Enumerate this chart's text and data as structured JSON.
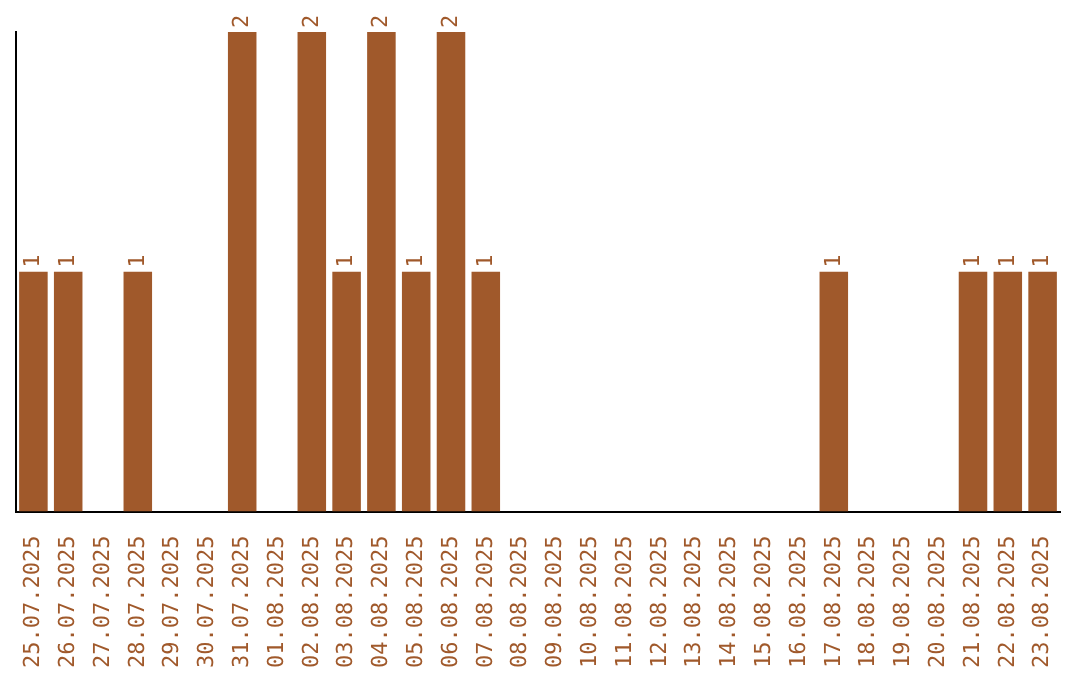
{
  "chart_data": {
    "type": "bar",
    "categories": [
      "25.07.2025",
      "26.07.2025",
      "27.07.2025",
      "28.07.2025",
      "29.07.2025",
      "30.07.2025",
      "31.07.2025",
      "01.08.2025",
      "02.08.2025",
      "03.08.2025",
      "04.08.2025",
      "05.08.2025",
      "06.08.2025",
      "07.08.2025",
      "08.08.2025",
      "09.08.2025",
      "10.08.2025",
      "11.08.2025",
      "12.08.2025",
      "13.08.2025",
      "14.08.2025",
      "15.08.2025",
      "16.08.2025",
      "17.08.2025",
      "18.08.2025",
      "19.08.2025",
      "20.08.2025",
      "21.08.2025",
      "22.08.2025",
      "23.08.2025"
    ],
    "values": [
      1,
      1,
      0,
      1,
      0,
      0,
      2,
      0,
      2,
      1,
      2,
      1,
      2,
      1,
      0,
      0,
      0,
      0,
      0,
      0,
      0,
      0,
      0,
      1,
      0,
      0,
      0,
      1,
      1,
      1
    ],
    "value_labels": [
      "1",
      "1",
      null,
      "1",
      null,
      null,
      "2",
      null,
      "2",
      "1",
      "2",
      "1",
      "2",
      "1",
      null,
      null,
      null,
      null,
      null,
      null,
      null,
      null,
      null,
      "1",
      null,
      null,
      null,
      "1",
      "1",
      "1"
    ],
    "color": "#a0592b",
    "tick_labels": "x",
    "grid": false,
    "legend": false
  }
}
